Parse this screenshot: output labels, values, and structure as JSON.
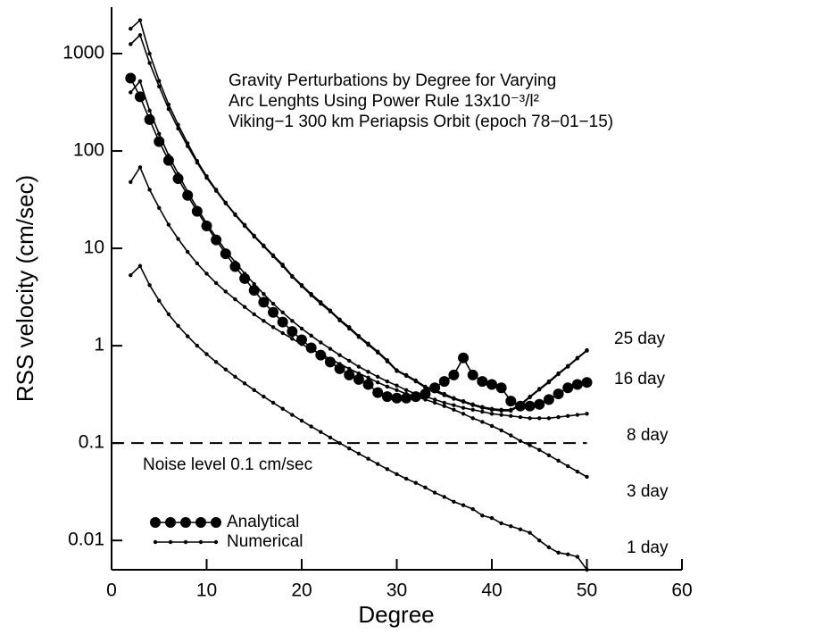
{
  "chart_data": {
    "type": "line",
    "title_lines": [
      "Gravity Perturbations by Degree for Varying",
      "Arc Lenghts Using Power Rule 13x10⁻³/l²",
      "Viking−1  300  km  Periapsis Orbit (epoch 78−01−15)"
    ],
    "x_label": "Degree",
    "y_label": "RSS velocity (cm/sec)",
    "log_y": true,
    "xlim": [
      0,
      60
    ],
    "xticks": [
      0,
      10,
      20,
      30,
      40,
      50,
      60
    ],
    "ylim": [
      0.005,
      3000
    ],
    "yticks": [
      0.01,
      0.1,
      1,
      10,
      100,
      1000
    ],
    "color": "#000000",
    "x": [
      2,
      3,
      4,
      5,
      6,
      7,
      8,
      9,
      10,
      11,
      12,
      13,
      14,
      15,
      16,
      17,
      18,
      19,
      20,
      21,
      22,
      23,
      24,
      25,
      26,
      27,
      28,
      29,
      30,
      31,
      32,
      33,
      34,
      35,
      36,
      37,
      38,
      39,
      40,
      41,
      42,
      43,
      44,
      45,
      46,
      47,
      48,
      49,
      50
    ],
    "series": [
      {
        "name": "25 day",
        "style": "numerical",
        "values": [
          1800,
          2200,
          1000,
          525,
          300,
          186,
          120,
          79,
          55,
          40,
          29.5,
          22.4,
          17.4,
          13.5,
          10.7,
          8.5,
          6.8,
          5.2,
          4.2,
          3.4,
          2.8,
          2.3,
          1.86,
          1.55,
          1.26,
          1.05,
          0.87,
          0.71,
          0.56,
          0.5,
          0.44,
          0.38,
          0.35,
          0.32,
          0.29,
          0.27,
          0.25,
          0.235,
          0.225,
          0.22,
          0.22,
          0.25,
          0.3,
          0.36,
          0.43,
          0.52,
          0.62,
          0.75,
          0.9
        ]
      },
      {
        "style": "numerical",
        "values": [
          1250,
          1550,
          800,
          460,
          270,
          170,
          112,
          76,
          53,
          39,
          29,
          22,
          17,
          13.2,
          10.5,
          8.3,
          6.6,
          5.1,
          4.1,
          3.3,
          2.7,
          2.25,
          1.82,
          1.5,
          1.23,
          1.02,
          0.85,
          0.69,
          0.55,
          0.49,
          0.43,
          0.37,
          0.34,
          0.31,
          0.285,
          0.265,
          0.245,
          0.23,
          0.22,
          0.215,
          0.215,
          0.245,
          0.295,
          0.355,
          0.42,
          0.51,
          0.61,
          0.74,
          0.89
        ]
      },
      {
        "name": "16 day",
        "style": "analytical",
        "values": [
          560,
          360,
          210,
          125,
          80,
          52,
          35,
          24,
          17,
          12.2,
          8.8,
          6.5,
          4.9,
          3.7,
          2.8,
          2.2,
          1.75,
          1.4,
          1.15,
          0.95,
          0.8,
          0.68,
          0.58,
          0.5,
          0.45,
          0.4,
          0.33,
          0.3,
          0.29,
          0.29,
          0.3,
          0.32,
          0.37,
          0.43,
          0.5,
          0.75,
          0.5,
          0.43,
          0.4,
          0.37,
          0.27,
          0.24,
          0.24,
          0.25,
          0.28,
          0.32,
          0.37,
          0.4,
          0.42
        ]
      },
      {
        "name": "8 day",
        "style": "numerical",
        "values": [
          400,
          520,
          260,
          150,
          90,
          58,
          38,
          26,
          18,
          13,
          9.5,
          7.2,
          5.5,
          4.3,
          3.4,
          2.7,
          2.2,
          1.8,
          1.5,
          1.27,
          1.08,
          0.93,
          0.8,
          0.7,
          0.61,
          0.54,
          0.48,
          0.43,
          0.39,
          0.35,
          0.32,
          0.3,
          0.28,
          0.26,
          0.245,
          0.23,
          0.22,
          0.21,
          0.2,
          0.195,
          0.19,
          0.185,
          0.18,
          0.18,
          0.18,
          0.185,
          0.19,
          0.195,
          0.2
        ]
      },
      {
        "name": "3 day",
        "style": "numerical",
        "values": [
          48,
          68,
          40,
          26,
          17.5,
          12.5,
          9.2,
          7,
          5.5,
          4.4,
          3.6,
          3.0,
          2.5,
          2.1,
          1.8,
          1.55,
          1.35,
          1.18,
          1.04,
          0.92,
          0.82,
          0.73,
          0.65,
          0.58,
          0.52,
          0.47,
          0.42,
          0.38,
          0.35,
          0.32,
          0.3,
          0.28,
          0.26,
          0.24,
          0.22,
          0.2,
          0.18,
          0.165,
          0.15,
          0.135,
          0.12,
          0.105,
          0.095,
          0.085,
          0.075,
          0.066,
          0.058,
          0.051,
          0.045
        ]
      },
      {
        "name": "1 day",
        "style": "numerical",
        "values": [
          5.3,
          6.6,
          4.2,
          2.9,
          2.1,
          1.6,
          1.25,
          1.0,
          0.82,
          0.68,
          0.57,
          0.48,
          0.41,
          0.35,
          0.3,
          0.26,
          0.225,
          0.195,
          0.17,
          0.148,
          0.13,
          0.114,
          0.1,
          0.088,
          0.078,
          0.069,
          0.061,
          0.054,
          0.048,
          0.043,
          0.039,
          0.035,
          0.031,
          0.028,
          0.025,
          0.023,
          0.021,
          0.018,
          0.017,
          0.015,
          0.014,
          0.013,
          0.012,
          0.01,
          0.0085,
          0.0075,
          0.0072,
          0.0068,
          0.005
        ]
      }
    ],
    "reference_line": {
      "y": 0.1,
      "label": "Noise level 0.1 cm/sec"
    },
    "legend": [
      {
        "label": "Analytical",
        "style": "analytical"
      },
      {
        "label": "Numerical",
        "style": "numerical"
      }
    ]
  }
}
